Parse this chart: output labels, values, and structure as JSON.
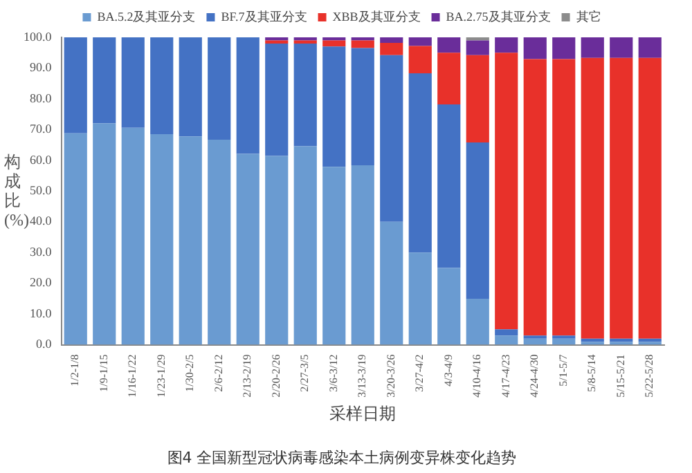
{
  "chart_data": {
    "type": "bar",
    "stacked": true,
    "title": "图4 全国新型冠状病毒感染本土病例变异株变化趋势",
    "xlabel": "采样日期",
    "ylabel": "构成比(%)",
    "categories": [
      "1/2-1/8",
      "1/9-1/15",
      "1/16-1/22",
      "1/23-1/29",
      "1/30-2/5",
      "2/6-2/12",
      "2/13-2/19",
      "2/20-2/26",
      "2/27-3/5",
      "3/6-3/12",
      "3/13-3/19",
      "3/20-3/26",
      "3/27-4/2",
      "4/3-4/9",
      "4/10-4/16",
      "4/17-4/23",
      "4/24-4/30",
      "5/1-5/7",
      "5/8-5/14",
      "5/15-5/21",
      "5/22-5/28"
    ],
    "series": [
      {
        "name": "BA.5.2及其亚分支",
        "color": "#6a9bd1",
        "values": [
          68.8,
          72,
          70.6,
          68.5,
          67.8,
          66.7,
          62.1,
          61.4,
          64.6,
          57.9,
          58.4,
          40,
          30,
          25,
          15,
          3,
          2,
          2,
          1,
          1,
          1
        ]
      },
      {
        "name": "BF.7及其亚分支",
        "color": "#4472c4",
        "values": [
          31.2,
          28,
          29.4,
          31.5,
          32.2,
          33.3,
          37.9,
          36.6,
          33.4,
          39.1,
          38.1,
          54.2,
          58.3,
          53.2,
          50.8,
          2,
          1,
          1,
          1,
          1,
          1
        ]
      },
      {
        "name": "XBB及其亚分支",
        "color": "#e8312a",
        "values": [
          0,
          0,
          0,
          0,
          0,
          0,
          0,
          1,
          1,
          2,
          2.5,
          4,
          8.9,
          16.8,
          28.4,
          90,
          89.9,
          89.9,
          91.3,
          91.3,
          91.3
        ]
      },
      {
        "name": "BA.2.75及其亚分支",
        "color": "#6a2d9a",
        "values": [
          0,
          0,
          0,
          0,
          0,
          0,
          0,
          1,
          1,
          1,
          1,
          1.8,
          2.8,
          5,
          4.8,
          5,
          7.1,
          7.1,
          6.7,
          6.7,
          6.7
        ]
      },
      {
        "name": "其它",
        "color": "#8c8c8c",
        "values": [
          0,
          0,
          0,
          0,
          0,
          0,
          0,
          0,
          0,
          0,
          0,
          0,
          0,
          0,
          1,
          0,
          0,
          0,
          0,
          0,
          0
        ]
      }
    ],
    "ylim": [
      0,
      100
    ],
    "yticks": [
      {
        "value": 0,
        "label": "0.0"
      },
      {
        "value": 10,
        "label": "10.0"
      },
      {
        "value": 20,
        "label": "20.0"
      },
      {
        "value": 30,
        "label": "30.0"
      },
      {
        "value": 40,
        "label": "40.0"
      },
      {
        "value": 50,
        "label": "50.0"
      },
      {
        "value": 60,
        "label": "60.0"
      },
      {
        "value": 70,
        "label": "70.0"
      },
      {
        "value": 80,
        "label": "80.0"
      },
      {
        "value": 90,
        "label": "90.0"
      },
      {
        "value": 100,
        "label": "100.0"
      }
    ],
    "grid": false,
    "legend": "top"
  }
}
